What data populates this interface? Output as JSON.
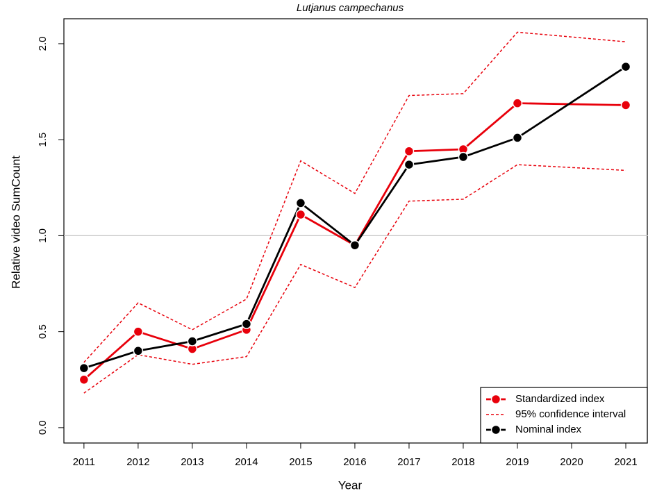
{
  "chart_data": {
    "type": "line",
    "title": "Lutjanus campechanus",
    "xlabel": "Year",
    "ylabel": "Relative video SumCount",
    "x": [
      2011,
      2012,
      2013,
      2014,
      2015,
      2016,
      2017,
      2018,
      2019,
      2021
    ],
    "series": [
      {
        "name": "Standardized index",
        "color": "#e8000b",
        "values": [
          0.25,
          0.5,
          0.41,
          0.51,
          1.11,
          0.95,
          1.44,
          1.45,
          1.69,
          1.68
        ]
      },
      {
        "name": "Nominal index",
        "color": "#000000",
        "values": [
          0.31,
          0.4,
          0.45,
          0.54,
          1.17,
          0.95,
          1.37,
          1.41,
          1.51,
          1.88
        ]
      }
    ],
    "ci": {
      "name": "95% confidence interval",
      "color": "#e8000b",
      "upper": [
        0.34,
        0.65,
        0.51,
        0.67,
        1.39,
        1.22,
        1.73,
        1.74,
        2.06,
        2.01
      ],
      "lower": [
        0.18,
        0.38,
        0.33,
        0.37,
        0.85,
        0.73,
        1.18,
        1.19,
        1.37,
        1.34
      ]
    },
    "reference_line": 1,
    "xlim": [
      2010.63,
      2021.41
    ],
    "xticks": [
      2011,
      2012,
      2013,
      2014,
      2015,
      2016,
      2017,
      2018,
      2019,
      2020,
      2021
    ],
    "ylim": [
      -0.08,
      2.13
    ],
    "yticks": [
      {
        "value": 0,
        "label": "0.0"
      },
      0.5,
      {
        "value": 1,
        "label": "1.0"
      },
      1.5,
      {
        "value": 2,
        "label": "2.0"
      }
    ],
    "legend_position": "bottom-right"
  }
}
